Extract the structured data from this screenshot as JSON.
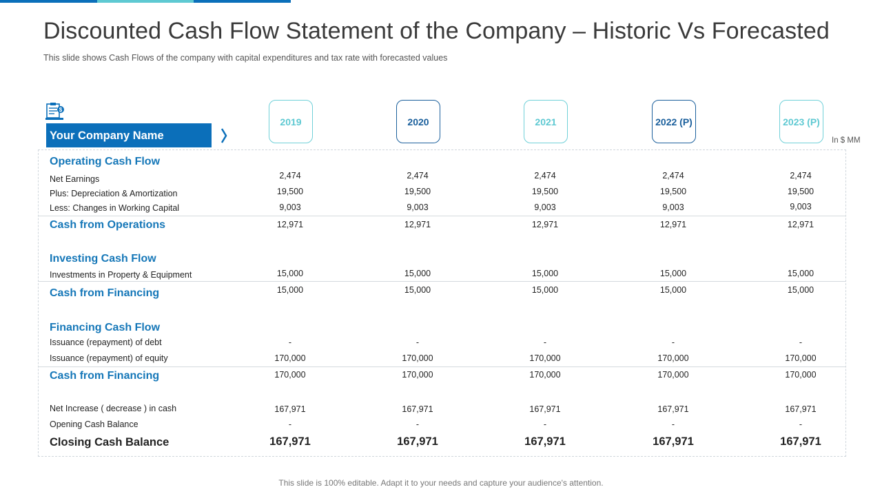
{
  "title": "Discounted Cash Flow Statement of the Company – Historic Vs Forecasted",
  "subtitle": "This slide shows Cash Flows of the company with capital expenditures and tax rate with forecasted values",
  "company_name": "Your Company Name",
  "unit_note": "In $ MM",
  "icons": {
    "logo": "document-finance-icon",
    "chevron": "chevron-right-icon"
  },
  "colors": {
    "accent_dark": "#0b6fba",
    "accent_light": "#5ec9d2",
    "section_text": "#1577b8"
  },
  "years": [
    "2019",
    "2020",
    "2021",
    "2022 (P)",
    "2023 (P)"
  ],
  "sections": {
    "operating": {
      "heading": "Operating Cash Flow",
      "items": [
        {
          "label": "Net Earnings",
          "values": [
            "2,474",
            "2,474",
            "2,474",
            "2,474",
            "2,474"
          ]
        },
        {
          "label": "Plus: Depreciation & Amortization",
          "values": [
            "19,500",
            "19,500",
            "19,500",
            "19,500",
            "19,500"
          ]
        },
        {
          "label": "Less: Changes in Working Capital",
          "values": [
            "9,003",
            "9,003",
            "9,003",
            "9,003",
            "9,003"
          ]
        }
      ],
      "subtotal": {
        "label": "Cash from Operations",
        "values": [
          "12,971",
          "12,971",
          "12,971",
          "12,971",
          "12,971"
        ]
      }
    },
    "investing": {
      "heading": "Investing Cash Flow",
      "items": [
        {
          "label": "Investments in Property & Equipment",
          "values": [
            "15,000",
            "15,000",
            "15,000",
            "15,000",
            "15,000"
          ]
        }
      ],
      "subtotal": {
        "label": "Cash from Financing",
        "values": [
          "15,000",
          "15,000",
          "15,000",
          "15,000",
          "15,000"
        ]
      }
    },
    "financing": {
      "heading": "Financing Cash Flow",
      "items": [
        {
          "label": "Issuance (repayment) of debt",
          "values": [
            "-",
            "-",
            "-",
            "-",
            "-"
          ]
        },
        {
          "label": "Issuance (repayment) of equity",
          "values": [
            "170,000",
            "170,000",
            "170,000",
            "170,000",
            "170,000"
          ]
        }
      ],
      "subtotal": {
        "label": "Cash from Financing",
        "values": [
          "170,000",
          "170,000",
          "170,000",
          "170,000",
          "170,000"
        ]
      }
    },
    "summary": {
      "items": [
        {
          "label": "Net Increase ( decrease ) in cash",
          "values": [
            "167,971",
            "167,971",
            "167,971",
            "167,971",
            "167,971"
          ]
        },
        {
          "label": "Opening Cash Balance",
          "values": [
            "-",
            "-",
            "-",
            "-",
            "-"
          ]
        }
      ],
      "total": {
        "label": "Closing Cash Balance",
        "values": [
          "167,971",
          "167,971",
          "167,971",
          "167,971",
          "167,971"
        ]
      }
    }
  },
  "footer": "This slide is 100% editable. Adapt it to your needs and capture your audience's attention."
}
